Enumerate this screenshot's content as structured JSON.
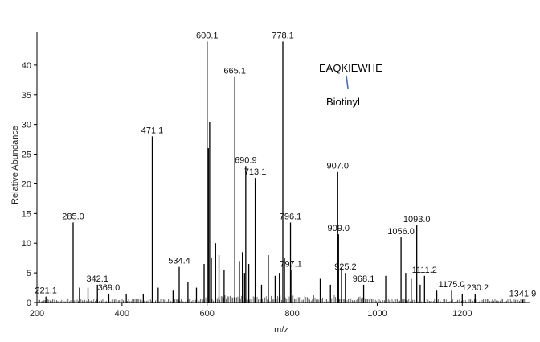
{
  "chart_data": {
    "type": "bar",
    "title": "",
    "xlabel": "m/z",
    "ylabel": "Relative Abundance",
    "xlim": [
      200,
      1360
    ],
    "ylim": [
      0,
      45
    ],
    "xticks": [
      200,
      400,
      600,
      800,
      1000,
      1200
    ],
    "yticks": [
      0,
      5,
      10,
      15,
      20,
      25,
      30,
      35,
      40
    ],
    "grid": false,
    "legend": "none",
    "labeled_peaks": [
      {
        "x": 221.1,
        "y": 1.0,
        "label": "221.1"
      },
      {
        "x": 285.0,
        "y": 13.5,
        "label": "285.0"
      },
      {
        "x": 342.1,
        "y": 3.0,
        "label": "342.1"
      },
      {
        "x": 369.0,
        "y": 1.5,
        "label": "369.0"
      },
      {
        "x": 471.1,
        "y": 28.0,
        "label": "471.1"
      },
      {
        "x": 534.4,
        "y": 6.0,
        "label": "534.4"
      },
      {
        "x": 600.1,
        "y": 44.0,
        "label": "600.1"
      },
      {
        "x": 665.1,
        "y": 38.0,
        "label": "665.1"
      },
      {
        "x": 690.9,
        "y": 23.0,
        "label": "690.9"
      },
      {
        "x": 713.1,
        "y": 21.0,
        "label": "713.1"
      },
      {
        "x": 778.1,
        "y": 44.0,
        "label": "778.1"
      },
      {
        "x": 796.1,
        "y": 13.5,
        "label": "796.1"
      },
      {
        "x": 797.1,
        "y": 5.5,
        "label": "797.1"
      },
      {
        "x": 907.0,
        "y": 22.0,
        "label": "907.0"
      },
      {
        "x": 909.0,
        "y": 11.5,
        "label": "909.0"
      },
      {
        "x": 925.2,
        "y": 5.0,
        "label": "925.2"
      },
      {
        "x": 968.1,
        "y": 3.0,
        "label": "968.1"
      },
      {
        "x": 1056.0,
        "y": 11.0,
        "label": "1056.0"
      },
      {
        "x": 1093.0,
        "y": 13.0,
        "label": "1093.0"
      },
      {
        "x": 1111.2,
        "y": 4.5,
        "label": "1111.2"
      },
      {
        "x": 1175.0,
        "y": 2.0,
        "label": "1175.0"
      },
      {
        "x": 1230.2,
        "y": 1.5,
        "label": "1230.2"
      },
      {
        "x": 1341.9,
        "y": 0.5,
        "label": "1341.9"
      }
    ],
    "unlabeled_peaks": [
      {
        "x": 606.0,
        "y": 30.5
      },
      {
        "x": 603.0,
        "y": 26.0
      },
      {
        "x": 610.0,
        "y": 7.5
      },
      {
        "x": 593.0,
        "y": 6.5
      },
      {
        "x": 620.0,
        "y": 10.0
      },
      {
        "x": 628.0,
        "y": 8.0
      },
      {
        "x": 640.0,
        "y": 5.5
      },
      {
        "x": 676.0,
        "y": 7.0
      },
      {
        "x": 683.0,
        "y": 8.5
      },
      {
        "x": 688.0,
        "y": 5.0
      },
      {
        "x": 698.0,
        "y": 6.5
      },
      {
        "x": 728.0,
        "y": 3.0
      },
      {
        "x": 744.0,
        "y": 8.0
      },
      {
        "x": 760.0,
        "y": 4.5
      },
      {
        "x": 770.0,
        "y": 5.0
      },
      {
        "x": 782.0,
        "y": 7.5
      },
      {
        "x": 866.0,
        "y": 4.0
      },
      {
        "x": 890.0,
        "y": 3.0
      },
      {
        "x": 916.0,
        "y": 6.0
      },
      {
        "x": 1020.0,
        "y": 4.5
      },
      {
        "x": 1067.0,
        "y": 5.0
      },
      {
        "x": 1080.0,
        "y": 4.0
      },
      {
        "x": 1101.0,
        "y": 3.0
      },
      {
        "x": 1140.0,
        "y": 2.0
      },
      {
        "x": 1200.0,
        "y": 1.5
      },
      {
        "x": 300.0,
        "y": 2.5
      },
      {
        "x": 320.0,
        "y": 2.5
      },
      {
        "x": 410.0,
        "y": 1.5
      },
      {
        "x": 450.0,
        "y": 1.5
      },
      {
        "x": 485.0,
        "y": 2.5
      },
      {
        "x": 520.0,
        "y": 2.0
      },
      {
        "x": 555.0,
        "y": 3.5
      },
      {
        "x": 575.0,
        "y": 2.5
      }
    ],
    "annotations": {
      "sequence": "EAQKIEWHE",
      "modification": "Biotinyl"
    }
  }
}
